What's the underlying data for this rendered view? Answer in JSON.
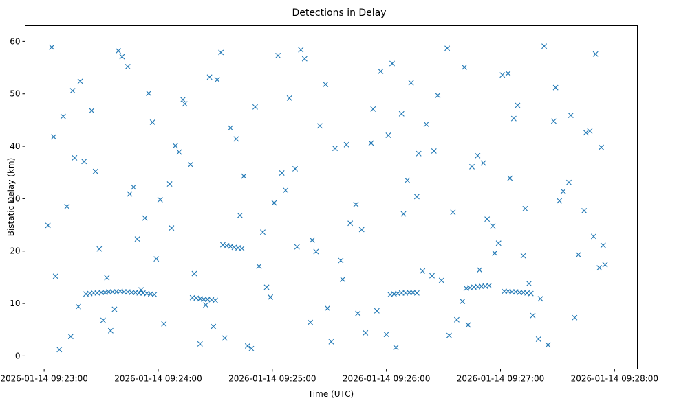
{
  "chart_data": {
    "type": "scatter",
    "title": "Detections in Delay",
    "xlabel": "Time (UTC)",
    "ylabel": "Bistatic Delay (km)",
    "xlim": [
      "2026-01-14 09:22:50",
      "2026-01-14 09:28:12"
    ],
    "ylim": [
      -2.5,
      63
    ],
    "xticks": [
      {
        "value": "2026-01-14 09:23:00",
        "label": "2026-01-14 09:23:00"
      },
      {
        "value": "2026-01-14 09:24:00",
        "label": "2026-01-14 09:24:00"
      },
      {
        "value": "2026-01-14 09:25:00",
        "label": "2026-01-14 09:25:00"
      },
      {
        "value": "2026-01-14 09:26:00",
        "label": "2026-01-14 09:26:00"
      },
      {
        "value": "2026-01-14 09:27:00",
        "label": "2026-01-14 09:27:00"
      },
      {
        "value": "2026-01-14 09:28:00",
        "label": "2026-01-14 09:28:00"
      }
    ],
    "yticks": [
      0,
      10,
      20,
      30,
      40,
      50,
      60
    ],
    "marker": "x",
    "color": "#1f77b4",
    "grid": false,
    "series": [
      {
        "x": [
          "2026-01-14 09:23:22",
          "2026-01-14 09:23:24",
          "2026-01-14 09:23:26",
          "2026-01-14 09:23:28",
          "2026-01-14 09:23:30",
          "2026-01-14 09:23:32",
          "2026-01-14 09:23:34",
          "2026-01-14 09:23:36",
          "2026-01-14 09:23:38",
          "2026-01-14 09:23:40",
          "2026-01-14 09:23:42",
          "2026-01-14 09:23:44",
          "2026-01-14 09:23:46",
          "2026-01-14 09:23:48",
          "2026-01-14 09:23:50",
          "2026-01-14 09:23:52",
          "2026-01-14 09:23:54",
          "2026-01-14 09:23:56",
          "2026-01-14 09:23:58",
          "2026-01-14 09:24:18",
          "2026-01-14 09:24:20",
          "2026-01-14 09:24:22",
          "2026-01-14 09:24:24",
          "2026-01-14 09:24:26",
          "2026-01-14 09:24:28",
          "2026-01-14 09:24:30",
          "2026-01-14 09:24:34",
          "2026-01-14 09:24:36",
          "2026-01-14 09:24:38",
          "2026-01-14 09:24:40",
          "2026-01-14 09:24:42",
          "2026-01-14 09:24:44",
          "2026-01-14 09:26:02",
          "2026-01-14 09:26:04",
          "2026-01-14 09:26:06",
          "2026-01-14 09:26:08",
          "2026-01-14 09:26:10",
          "2026-01-14 09:26:12",
          "2026-01-14 09:26:14",
          "2026-01-14 09:26:16",
          "2026-01-14 09:26:42",
          "2026-01-14 09:26:44",
          "2026-01-14 09:26:46",
          "2026-01-14 09:26:48",
          "2026-01-14 09:26:50",
          "2026-01-14 09:26:52",
          "2026-01-14 09:26:54",
          "2026-01-14 09:27:02",
          "2026-01-14 09:27:04",
          "2026-01-14 09:27:06",
          "2026-01-14 09:27:08",
          "2026-01-14 09:27:10",
          "2026-01-14 09:27:12",
          "2026-01-14 09:27:14",
          "2026-01-14 09:27:16",
          "2026-01-14 09:23:05",
          "2026-01-14 09:23:12",
          "2026-01-14 09:23:18",
          "2026-01-14 09:23:27",
          "2026-01-14 09:23:35",
          "2026-01-14 09:23:41",
          "2026-01-14 09:23:49",
          "2026-01-14 09:23:57",
          "2026-01-14 09:24:03",
          "2026-01-14 09:24:11",
          "2026-01-14 09:24:19",
          "2026-01-14 09:24:27",
          "2026-01-14 09:24:35",
          "2026-01-14 09:24:43",
          "2026-01-14 09:24:51",
          "2026-01-14 09:24:59",
          "2026-01-14 09:25:07",
          "2026-01-14 09:25:15",
          "2026-01-14 09:25:23",
          "2026-01-14 09:25:31",
          "2026-01-14 09:25:39",
          "2026-01-14 09:25:47",
          "2026-01-14 09:25:55",
          "2026-01-14 09:26:03",
          "2026-01-14 09:26:11",
          "2026-01-14 09:26:19",
          "2026-01-14 09:26:27",
          "2026-01-14 09:26:35",
          "2026-01-14 09:26:43",
          "2026-01-14 09:26:51",
          "2026-01-14 09:26:59",
          "2026-01-14 09:27:07",
          "2026-01-14 09:27:15",
          "2026-01-14 09:27:23",
          "2026-01-14 09:27:31",
          "2026-01-14 09:27:39",
          "2026-01-14 09:27:47",
          "2026-01-14 09:27:55",
          "2026-01-14 09:23:08",
          "2026-01-14 09:23:15",
          "2026-01-14 09:23:21",
          "2026-01-14 09:23:33",
          "2026-01-14 09:23:44",
          "2026-01-14 09:23:53",
          "2026-01-14 09:24:06",
          "2026-01-14 09:24:14",
          "2026-01-14 09:24:25",
          "2026-01-14 09:24:38",
          "2026-01-14 09:24:47",
          "2026-01-14 09:24:55",
          "2026-01-14 09:25:03",
          "2026-01-14 09:25:12",
          "2026-01-14 09:25:20",
          "2026-01-14 09:25:28",
          "2026-01-14 09:25:36",
          "2026-01-14 09:25:44",
          "2026-01-14 09:25:52",
          "2026-01-14 09:26:00",
          "2026-01-14 09:26:08",
          "2026-01-14 09:26:16",
          "2026-01-14 09:26:24",
          "2026-01-14 09:26:32",
          "2026-01-14 09:26:40",
          "2026-01-14 09:26:48",
          "2026-01-14 09:26:56",
          "2026-01-14 09:27:04",
          "2026-01-14 09:27:12",
          "2026-01-14 09:27:20",
          "2026-01-14 09:27:28",
          "2026-01-14 09:27:36",
          "2026-01-14 09:27:44",
          "2026-01-14 09:27:52",
          "2026-01-14 09:23:02",
          "2026-01-14 09:23:10",
          "2026-01-14 09:23:19",
          "2026-01-14 09:23:31",
          "2026-01-14 09:23:45",
          "2026-01-14 09:23:59",
          "2026-01-14 09:24:09",
          "2026-01-14 09:24:22",
          "2026-01-14 09:24:33",
          "2026-01-14 09:24:45",
          "2026-01-14 09:24:57",
          "2026-01-14 09:25:09",
          "2026-01-14 09:25:21",
          "2026-01-14 09:25:33",
          "2026-01-14 09:25:45",
          "2026-01-14 09:25:57",
          "2026-01-14 09:26:09",
          "2026-01-14 09:26:21",
          "2026-01-14 09:26:33",
          "2026-01-14 09:26:45",
          "2026-01-14 09:26:57",
          "2026-01-14 09:27:09",
          "2026-01-14 09:27:21",
          "2026-01-14 09:27:33",
          "2026-01-14 09:27:45",
          "2026-01-14 09:27:54",
          "2026-01-14 09:23:06",
          "2026-01-14 09:23:16",
          "2026-01-14 09:23:29",
          "2026-01-14 09:23:39",
          "2026-01-14 09:23:51",
          "2026-01-14 09:24:01",
          "2026-01-14 09:24:13",
          "2026-01-14 09:24:29",
          "2026-01-14 09:24:41",
          "2026-01-14 09:24:53",
          "2026-01-14 09:25:05",
          "2026-01-14 09:25:17",
          "2026-01-14 09:25:29",
          "2026-01-14 09:25:41",
          "2026-01-14 09:25:53",
          "2026-01-14 09:26:05",
          "2026-01-14 09:26:17",
          "2026-01-14 09:26:29",
          "2026-01-14 09:26:41",
          "2026-01-14 09:26:53",
          "2026-01-14 09:27:05",
          "2026-01-14 09:27:17",
          "2026-01-14 09:27:29",
          "2026-01-14 09:27:41",
          "2026-01-14 09:27:50",
          "2026-01-14 09:23:04",
          "2026-01-14 09:23:14",
          "2026-01-14 09:23:25",
          "2026-01-14 09:23:37",
          "2026-01-14 09:23:47",
          "2026-01-14 09:23:55",
          "2026-01-14 09:24:07",
          "2026-01-14 09:24:17",
          "2026-01-14 09:24:31",
          "2026-01-14 09:24:49",
          "2026-01-14 09:25:01",
          "2026-01-14 09:25:13",
          "2026-01-14 09:25:25",
          "2026-01-14 09:25:37",
          "2026-01-14 09:25:49",
          "2026-01-14 09:26:01",
          "2026-01-14 09:26:13",
          "2026-01-14 09:26:25",
          "2026-01-14 09:26:37",
          "2026-01-14 09:26:49",
          "2026-01-14 09:27:01",
          "2026-01-14 09:27:13",
          "2026-01-14 09:27:25",
          "2026-01-14 09:27:37",
          "2026-01-14 09:27:49",
          "2026-01-14 09:27:53"
        ],
        "y": [
          11.8,
          11.9,
          12.0,
          12.0,
          12.1,
          12.1,
          12.2,
          12.2,
          12.2,
          12.3,
          12.2,
          12.2,
          12.1,
          12.1,
          12.0,
          12.0,
          11.9,
          11.8,
          11.7,
          11.1,
          11.0,
          10.9,
          10.8,
          10.8,
          10.7,
          10.6,
          21.2,
          21.0,
          20.9,
          20.7,
          20.6,
          20.5,
          11.7,
          11.8,
          11.9,
          12.0,
          12.0,
          12.1,
          12.1,
          12.0,
          12.9,
          13.0,
          13.1,
          13.2,
          13.3,
          13.3,
          13.4,
          12.3,
          12.3,
          12.2,
          12.2,
          12.1,
          12.1,
          12.0,
          11.9,
          41.8,
          28.5,
          9.4,
          35.2,
          4.8,
          57.1,
          22.3,
          44.6,
          6.1,
          38.9,
          15.7,
          53.2,
          3.4,
          26.8,
          47.5,
          11.2,
          31.6,
          58.4,
          19.9,
          2.7,
          40.3,
          24.1,
          8.6,
          55.8,
          33.5,
          16.2,
          49.7,
          27.4,
          5.9,
          36.8,
          21.5,
          45.3,
          13.8,
          59.1,
          29.6,
          7.3,
          42.9,
          17.4,
          1.2,
          50.6,
          37.1,
          14.9,
          55.2,
          26.3,
          32.8,
          48.1,
          9.7,
          43.5,
          1.9,
          23.6,
          57.3,
          35.7,
          6.4,
          51.8,
          18.2,
          28.9,
          40.6,
          4.1,
          46.2,
          30.4,
          15.3,
          58.7,
          10.4,
          38.2,
          24.8,
          53.9,
          19.1,
          3.2,
          44.8,
          33.1,
          27.7,
          16.8,
          24.9,
          45.7,
          52.4,
          6.8,
          30.9,
          18.5,
          40.1,
          2.3,
          57.9,
          34.3,
          13.1,
          49.2,
          22.1,
          39.6,
          8.1,
          54.3,
          27.1,
          44.2,
          3.9,
          36.1,
          19.6,
          47.8,
          10.9,
          31.4,
          42.6,
          21.1,
          15.2,
          37.8,
          20.4,
          58.2,
          12.6,
          29.8,
          48.9,
          5.6,
          41.4,
          17.1,
          34.9,
          56.7,
          9.1,
          25.3,
          47.1,
          1.6,
          38.6,
          14.4,
          55.1,
          26.1,
          33.9,
          7.7,
          51.2,
          19.3,
          57.6,
          58.9,
          3.7,
          46.8,
          8.9,
          32.2,
          50.1,
          24.4,
          36.5,
          52.7,
          1.4,
          29.2,
          20.8,
          43.9,
          14.6,
          4.4,
          42.1,
          52.1,
          39.1,
          6.9,
          16.4,
          53.6,
          28.1,
          2.1,
          45.9,
          22.8,
          39.8
        ]
      }
    ]
  }
}
